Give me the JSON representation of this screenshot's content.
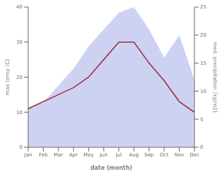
{
  "chart_data": {
    "type": "line",
    "categories": [
      "Jan",
      "Feb",
      "Mar",
      "Apr",
      "May",
      "Jun",
      "Jul",
      "Aug",
      "Sep",
      "Oct",
      "Nov",
      "Dec"
    ],
    "series": [
      {
        "type": "area",
        "axis": "y2",
        "color": "#c5caf0",
        "values": [
          7,
          8,
          11,
          14,
          18,
          21,
          24,
          25,
          21,
          16,
          20,
          12
        ]
      },
      {
        "type": "line",
        "color": "#993344",
        "values": [
          11,
          13,
          15,
          17,
          20,
          25,
          30,
          30,
          24,
          19,
          13,
          10
        ]
      }
    ],
    "xlabel": "date (month)",
    "ylabel": "max temp (C)",
    "y2label": "med. precipitation (kg/m2)",
    "ylim": [
      0,
      40
    ],
    "yticks": [
      0,
      10,
      20,
      30,
      40
    ],
    "y2lim": [
      0,
      25
    ],
    "y2ticks": [
      0,
      5,
      10,
      15,
      20,
      25
    ],
    "grid": false
  }
}
